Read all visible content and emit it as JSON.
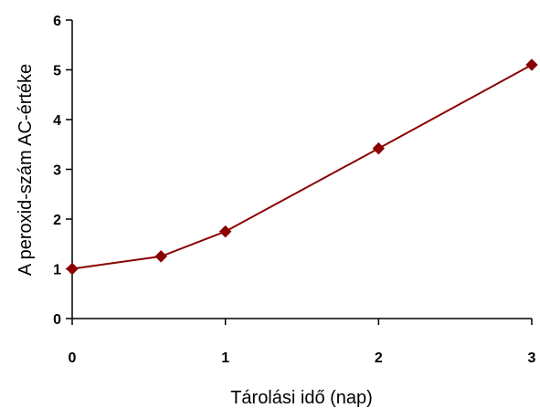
{
  "chart_data": {
    "type": "line",
    "title": "",
    "xlabel": "Tárolási idő (nap)",
    "ylabel": "A peroxid-szám AC-értéke",
    "xlim": [
      0,
      3
    ],
    "ylim": [
      0,
      6
    ],
    "xticks": [
      0,
      1,
      2,
      3
    ],
    "yticks": [
      0,
      1,
      2,
      3,
      4,
      5,
      6
    ],
    "grid": false,
    "legend": "none",
    "series": [
      {
        "color": "#8b0000",
        "marker": "diamond",
        "x": [
          0,
          0.58,
          1,
          2,
          3
        ],
        "y": [
          1.0,
          1.25,
          1.75,
          3.42,
          5.1
        ]
      }
    ]
  }
}
